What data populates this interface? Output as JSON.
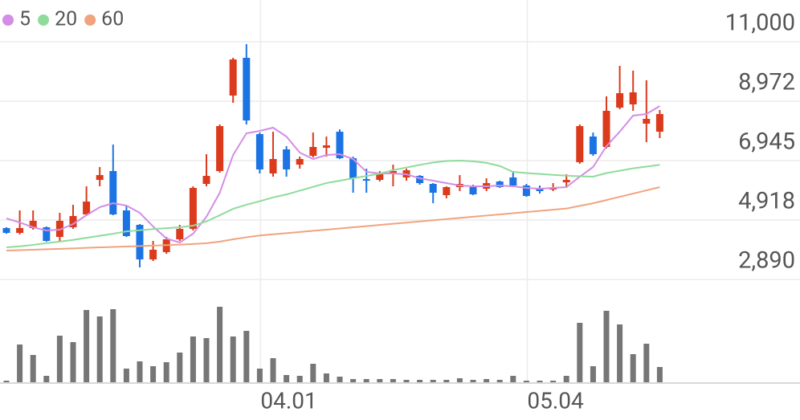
{
  "chart_data": {
    "type": "candlestick",
    "categories": [
      null,
      null,
      null,
      null,
      null,
      null,
      null,
      null,
      null,
      null,
      null,
      null,
      null,
      null,
      null,
      null,
      null,
      null,
      null,
      "04.01",
      null,
      null,
      null,
      null,
      null,
      null,
      null,
      null,
      null,
      null,
      null,
      null,
      null,
      null,
      null,
      null,
      null,
      null,
      null,
      "05.04",
      null,
      null,
      null,
      null,
      null,
      null,
      null,
      null,
      null,
      null
    ],
    "open": [
      4644,
      4479,
      4644,
      4670,
      4342,
      4670,
      5109,
      6287,
      6589,
      5246,
      4753,
      3575,
      3822,
      4260,
      4616,
      6150,
      6589,
      9164,
      10452,
      7849,
      6507,
      7329,
      6808,
      7109,
      7383,
      7931,
      7027,
      6315,
      6287,
      6479,
      6370,
      6424,
      6150,
      5767,
      6041,
      6041,
      5986,
      6232,
      6370,
      6096,
      6013,
      5959,
      6205,
      6890,
      7767,
      7411,
      8753,
      8863,
      8205,
      7931
    ],
    "high": [
      4670,
      5246,
      5246,
      4698,
      5164,
      5438,
      6068,
      6726,
      7493,
      5410,
      4781,
      4205,
      4342,
      4753,
      6068,
      7164,
      8178,
      10452,
      10918,
      7904,
      7931,
      7438,
      7082,
      7904,
      7767,
      8013,
      7082,
      6671,
      6589,
      6808,
      6671,
      6452,
      6178,
      6068,
      6452,
      6123,
      6342,
      6260,
      6589,
      6150,
      6096,
      6178,
      6479,
      8178,
      7904,
      9137,
      10178,
      10014,
      9685,
      8671
    ],
    "low": [
      4450,
      4425,
      4589,
      4178,
      4205,
      4616,
      5054,
      6068,
      5082,
      4342,
      3301,
      3520,
      3767,
      4205,
      4561,
      6068,
      6534,
      8918,
      8178,
      6507,
      6397,
      6397,
      6671,
      7054,
      7082,
      6999,
      5849,
      5849,
      6232,
      6068,
      6260,
      6123,
      5493,
      5657,
      5904,
      5767,
      5904,
      6013,
      6041,
      5712,
      5822,
      5904,
      6013,
      6836,
      7109,
      7356,
      8698,
      8644,
      7575,
      7712
    ],
    "close": [
      4479,
      4644,
      4890,
      4205,
      4890,
      5054,
      5548,
      6452,
      5109,
      4370,
      3575,
      3904,
      4260,
      4616,
      6013,
      6424,
      8123,
      10397,
      8315,
      6644,
      7000,
      6644,
      7000,
      7411,
      7466,
      7027,
      6342,
      6260,
      6479,
      6589,
      6616,
      6178,
      5849,
      6041,
      6150,
      5794,
      6178,
      6041,
      6096,
      5739,
      5904,
      6013,
      6287,
      8123,
      7164,
      8644,
      9246,
      9274,
      8370,
      8534
    ],
    "up_color": "#dc3a1c",
    "down_color": "#1c74e4",
    "volume": [
      2,
      47,
      34,
      8,
      58,
      50,
      90,
      82,
      91,
      17,
      26,
      20,
      25,
      37,
      57,
      55,
      94,
      57,
      64,
      17,
      30,
      9,
      8,
      23,
      11,
      7,
      4,
      4,
      4,
      4,
      3,
      3,
      3,
      3,
      5,
      3,
      4,
      3,
      8,
      2,
      2,
      2,
      8,
      74,
      20,
      89,
      72,
      35,
      48,
      19
    ],
    "volume_color": "#767676",
    "volume_ylim": [
      0,
      100
    ],
    "series": [
      {
        "name": "5",
        "color": "#d38de6",
        "values": [
          4972,
          4835,
          4671,
          4561,
          4589,
          4781,
          5082,
          5356,
          5493,
          5411,
          5164,
          4698,
          4287,
          4150,
          4452,
          5027,
          5849,
          7137,
          7877,
          7959,
          8069,
          7767,
          7219,
          6999,
          7137,
          7164,
          6999,
          6562,
          6507,
          6507,
          6479,
          6342,
          6260,
          6178,
          6096,
          6068,
          6068,
          6096,
          6068,
          6014,
          5986,
          6014,
          6041,
          6397,
          6726,
          7438,
          7932,
          8480,
          8534,
          8808
        ]
      },
      {
        "name": "20",
        "color": "#8fdb9c",
        "values": [
          3986,
          4020,
          4070,
          4130,
          4180,
          4240,
          4310,
          4380,
          4450,
          4530,
          4570,
          4610,
          4640,
          4670,
          4726,
          4870,
          5080,
          5300,
          5440,
          5560,
          5690,
          5790,
          5920,
          6050,
          6180,
          6260,
          6342,
          6420,
          6500,
          6620,
          6710,
          6800,
          6880,
          6930,
          6945,
          6920,
          6870,
          6760,
          6560,
          6520,
          6490,
          6460,
          6430,
          6410,
          6397,
          6520,
          6600,
          6680,
          6740,
          6800
        ]
      },
      {
        "name": "60",
        "color": "#f0a47e",
        "values": [
          3876,
          3890,
          3905,
          3920,
          3935,
          3950,
          3968,
          3985,
          4000,
          4015,
          4030,
          4045,
          4060,
          4080,
          4100,
          4125,
          4180,
          4260,
          4330,
          4390,
          4430,
          4470,
          4510,
          4550,
          4590,
          4630,
          4670,
          4710,
          4750,
          4790,
          4830,
          4870,
          4910,
          4950,
          4990,
          5030,
          5070,
          5110,
          5150,
          5190,
          5230,
          5270,
          5310,
          5400,
          5490,
          5600,
          5710,
          5820,
          5930,
          6041
        ]
      }
    ],
    "ylim": [
      2890,
      12425
    ],
    "yticks": [
      {
        "value": 2890,
        "label": "2,890"
      },
      {
        "value": 4918,
        "label": "4,918"
      },
      {
        "value": 6945,
        "label": "6,945"
      },
      {
        "value": 8972,
        "label": "8,972"
      },
      {
        "value": 11000,
        "label": "11,000"
      }
    ],
    "grid": true
  }
}
